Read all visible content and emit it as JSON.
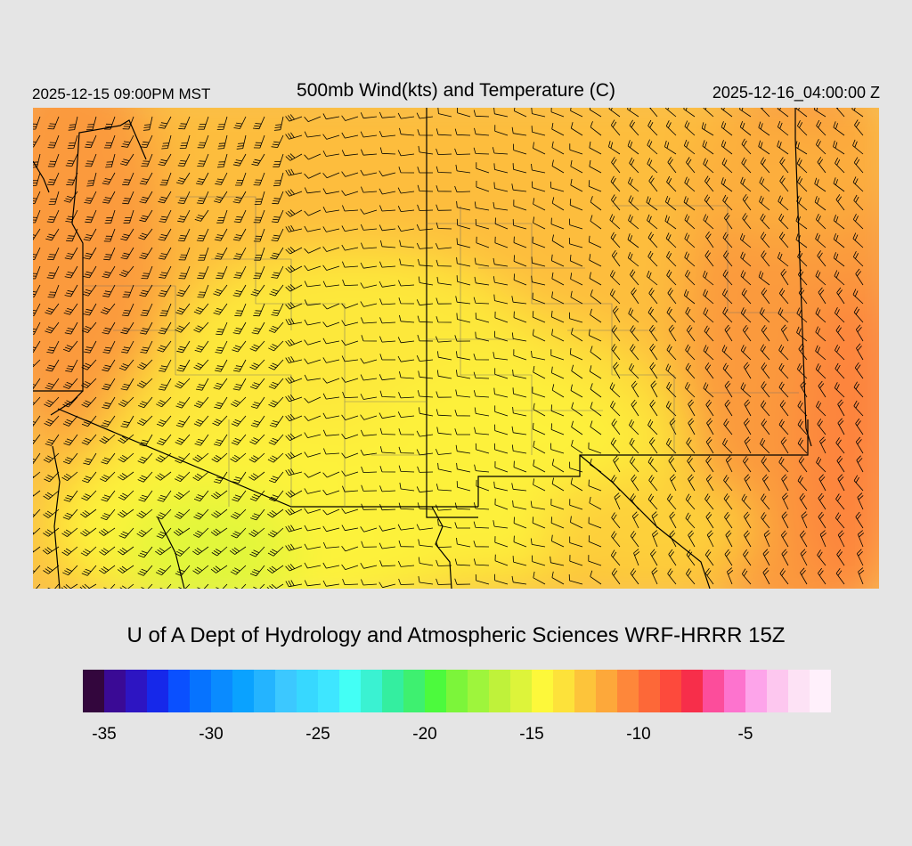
{
  "header": {
    "valid_time_local": "2025-12-15 09:00PM MST",
    "title": "500mb Wind(kts) and Temperature (C)",
    "valid_time_utc": "2025-12-16_04:00:00 Z"
  },
  "credit": "U of A Dept of Hydrology and Atmospheric Sciences WRF-HRRR 15Z",
  "colorbar": {
    "colors": [
      "#33063d",
      "#3a0a95",
      "#2d15c2",
      "#1628ea",
      "#0a50ff",
      "#0673ff",
      "#0a8bff",
      "#0aa2ff",
      "#24b4ff",
      "#3cc8ff",
      "#37d8ff",
      "#3ee6ff",
      "#43fff5",
      "#3af2d2",
      "#34eea0",
      "#3ef070",
      "#4cfa3d",
      "#7cf53a",
      "#9ef53c",
      "#bff23a",
      "#ddf43a",
      "#fdf83a",
      "#fde23a",
      "#fdc43a",
      "#fda83a",
      "#fe873a",
      "#fd6838",
      "#fd4a3c",
      "#f72e4a",
      "#fc4d9b",
      "#fd73ce",
      "#fda4ea",
      "#fdc7ef",
      "#fde2f5",
      "#fff0fb"
    ],
    "labels": [
      "-35",
      "-30",
      "-25",
      "-20",
      "-15",
      "-10",
      "-5"
    ]
  },
  "chart_data": {
    "type": "heatmap",
    "title": "500mb Wind(kts) and Temperature (C)",
    "field": "500mb Temperature (C)",
    "overlay": "wind barbs (kts)",
    "color_scale_min": -36,
    "color_scale_max": -1,
    "color_scale_step": 1,
    "colorbar_ticks": [
      -35,
      -30,
      -25,
      -20,
      -15,
      -10,
      -5
    ],
    "temperature_range_shown": [
      -17,
      -10
    ],
    "coldest_region": "southwest (about -16 to -17 C)",
    "warmest_region": "east and northwest edges (about -10 to -11 C)"
  }
}
